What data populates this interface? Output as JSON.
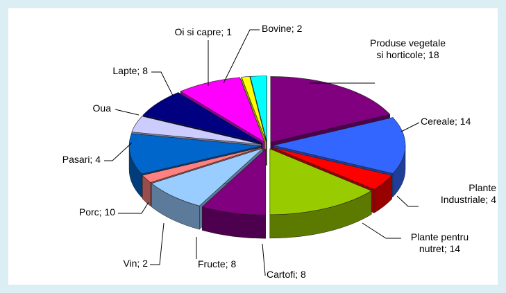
{
  "chart_data": {
    "type": "pie",
    "categories": [
      "Produse vegetale si horticole; 18",
      "Cereale; 14",
      "Plante Industriale; 4",
      "Plante pentru nutret; 14",
      "Cartofi; 8",
      "Fructe; 8",
      "Vin; 2",
      "Porc; 10",
      "Pasari; 4",
      "Oua",
      "Lapte; 8",
      "Oi si capre; 1",
      "Bovine; 2"
    ],
    "values": [
      18,
      14,
      4,
      14,
      8,
      8,
      2,
      10,
      4,
      7,
      8,
      1,
      2
    ],
    "colors": [
      "#800080",
      "#3366ff",
      "#ff0000",
      "#99cc00",
      "#800080",
      "#99ccff",
      "#ff8080",
      "#0066cc",
      "#ccccff",
      "#000080",
      "#ff00ff",
      "#ffff00",
      "#00ffff"
    ]
  }
}
